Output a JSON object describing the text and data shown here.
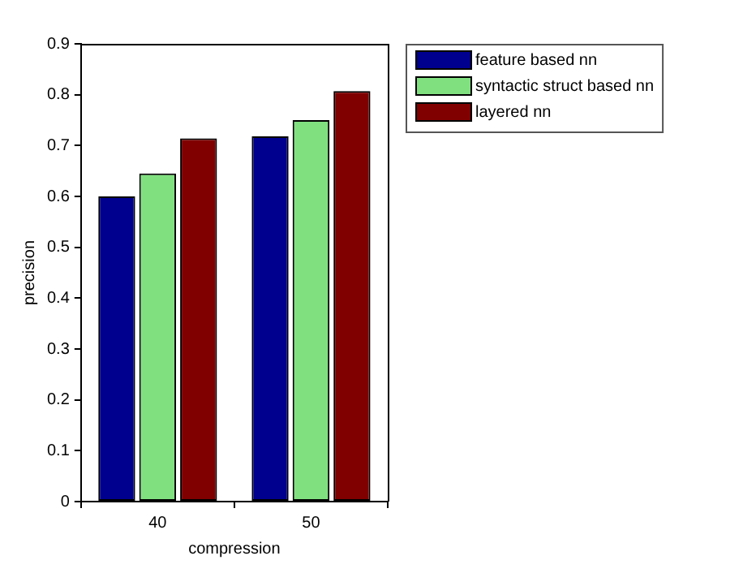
{
  "chart_data": {
    "type": "bar",
    "xlabel": "compression",
    "ylabel": "precision",
    "categories": [
      "40",
      "50"
    ],
    "series": [
      {
        "name": "feature based nn",
        "color": "#00008f",
        "values": [
          0.6,
          0.718
        ]
      },
      {
        "name": "syntactic struct based nn",
        "color": "#80e080",
        "values": [
          0.645,
          0.75
        ]
      },
      {
        "name": "layered nn",
        "color": "#800000",
        "values": [
          0.714,
          0.807
        ]
      }
    ],
    "ylim": [
      0,
      0.9
    ],
    "yticks": [
      0,
      0.1,
      0.2,
      0.3,
      0.4,
      0.5,
      0.6,
      0.7,
      0.8,
      0.9
    ],
    "grid": false,
    "legend": "top right"
  }
}
